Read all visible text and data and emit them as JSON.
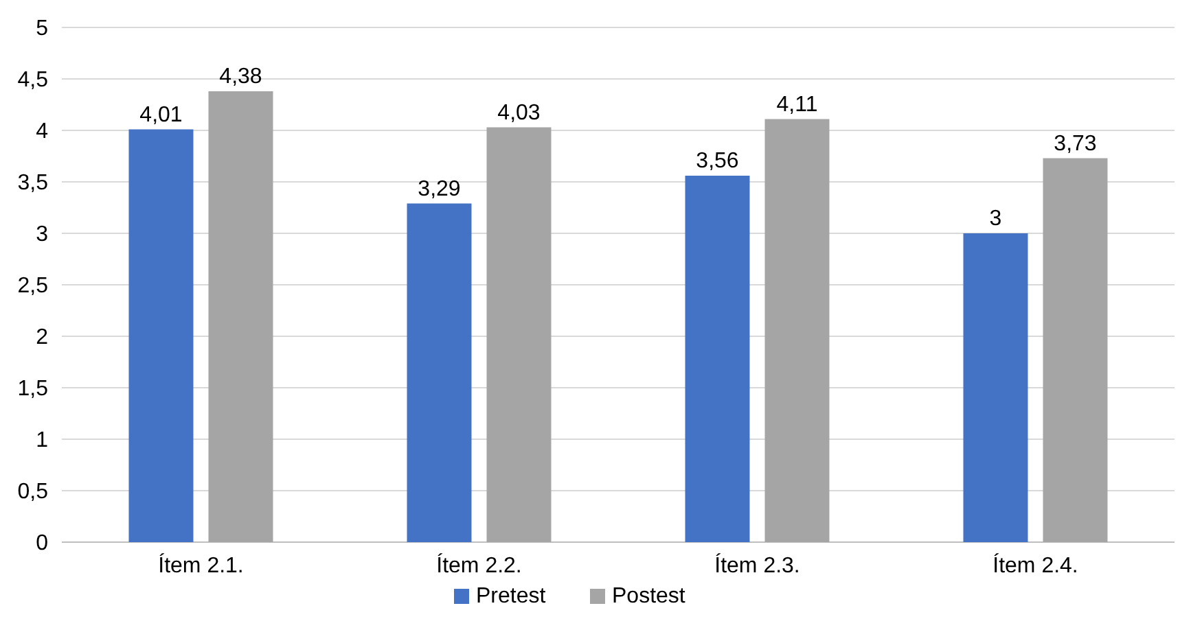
{
  "chart_data": {
    "type": "bar",
    "categories": [
      "Ítem 2.1.",
      "Ítem 2.2.",
      "Ítem 2.3.",
      "Ítem 2.4."
    ],
    "series": [
      {
        "name": "Pretest",
        "color": "#4472c4",
        "values": [
          4.01,
          3.29,
          3.56,
          3
        ],
        "value_labels": [
          "4,01",
          "3,29",
          "3,56",
          "3"
        ]
      },
      {
        "name": "Postest",
        "color": "#a5a5a5",
        "values": [
          4.38,
          4.03,
          4.11,
          3.73
        ],
        "value_labels": [
          "4,38",
          "4,03",
          "4,11",
          "3,73"
        ]
      }
    ],
    "ylim": [
      0,
      5
    ],
    "yticks": [
      0,
      {
        "value": 0.5,
        "label": "0,5"
      },
      1,
      {
        "value": 1.5,
        "label": "1,5"
      },
      2,
      {
        "value": 2.5,
        "label": "2,5"
      },
      3,
      {
        "value": 3.5,
        "label": "3,5"
      },
      4,
      {
        "value": 4.5,
        "label": "4,5"
      },
      5
    ],
    "grid": "y",
    "legend": "bottom"
  }
}
